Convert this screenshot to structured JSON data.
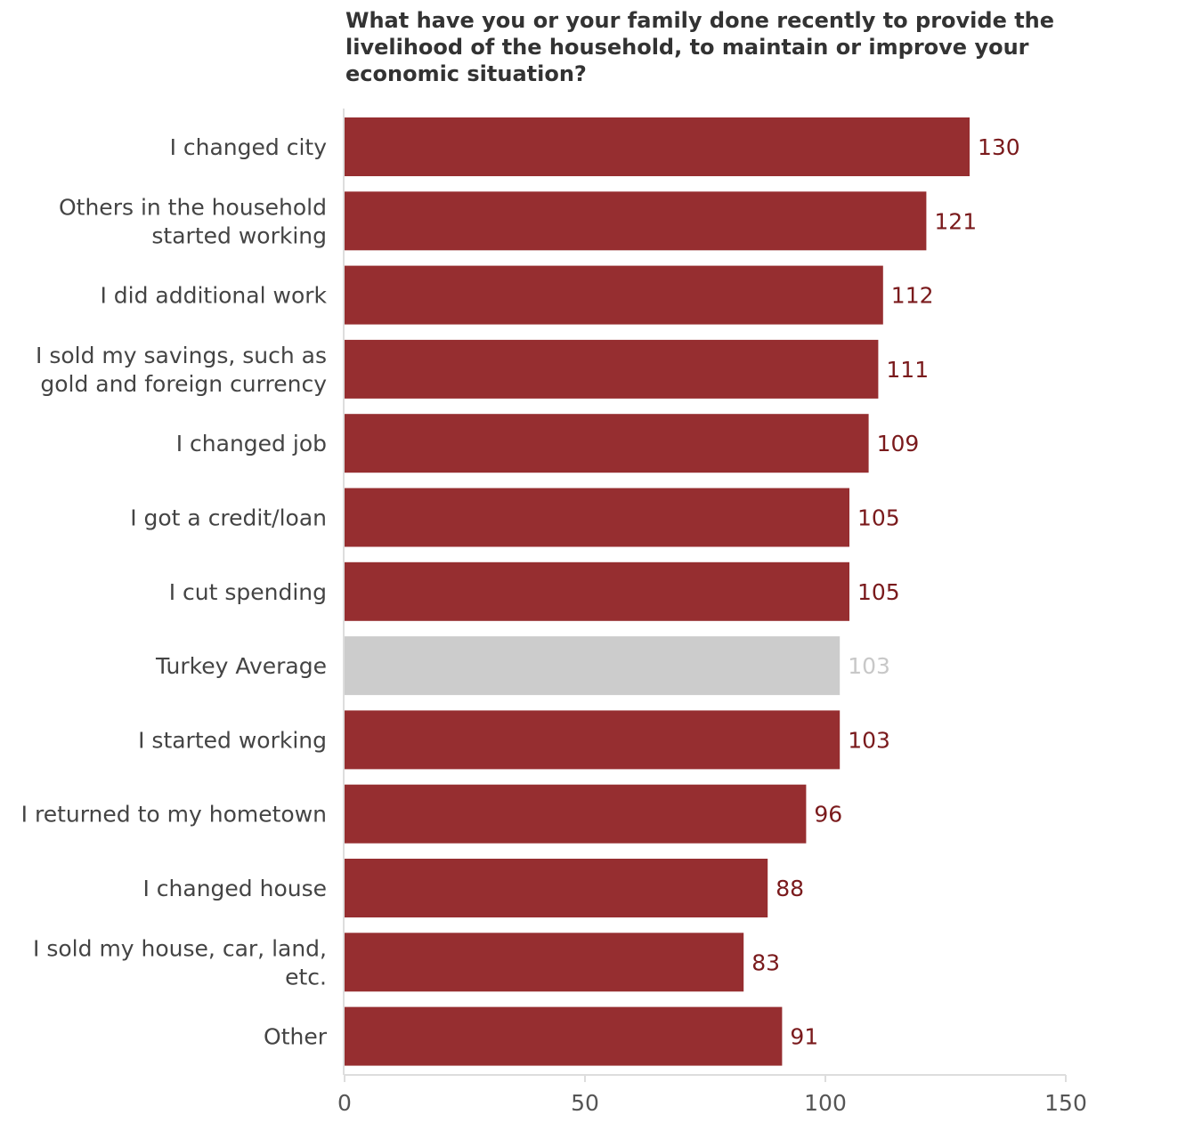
{
  "chart_data": {
    "type": "bar",
    "orientation": "horizontal",
    "title": "What have you or your family done recently to provide the livelihood of the household, to maintain or improve your economic situation?",
    "categories": [
      "I changed city",
      "Others in the household started working",
      "I did additional work",
      "I sold my savings, such as gold and foreign currency",
      "I changed job",
      "I got a credit/loan",
      "I cut spending",
      "Turkey Average",
      "I started working",
      "I returned to my hometown",
      "I changed house",
      "I sold my house, car, land, etc.",
      "Other"
    ],
    "category_lines": [
      [
        "I changed city"
      ],
      [
        "Others in the household",
        "started working"
      ],
      [
        "I did additional work"
      ],
      [
        "I sold my savings, such as",
        "gold and foreign currency"
      ],
      [
        "I changed job"
      ],
      [
        "I got a credit/loan"
      ],
      [
        "I cut spending"
      ],
      [
        "Turkey Average"
      ],
      [
        "I started working"
      ],
      [
        "I returned to my hometown"
      ],
      [
        "I changed house"
      ],
      [
        "I sold my house, car, land,",
        "etc."
      ],
      [
        "Other"
      ]
    ],
    "values": [
      130,
      121,
      112,
      111,
      109,
      105,
      105,
      103,
      103,
      96,
      88,
      83,
      91
    ],
    "highlight_index": 7,
    "xlim": [
      0,
      150
    ],
    "xticks": [
      0,
      50,
      100,
      150
    ],
    "xlabel": "",
    "ylabel": "",
    "grid": false,
    "legend": "none"
  },
  "colors": {
    "bar": "#962E30",
    "bar_highlight": "#CCCCCC",
    "value_label": "#7A1A1C",
    "value_label_highlight": "#C8C8C8",
    "axis": "#DDDDDD"
  }
}
